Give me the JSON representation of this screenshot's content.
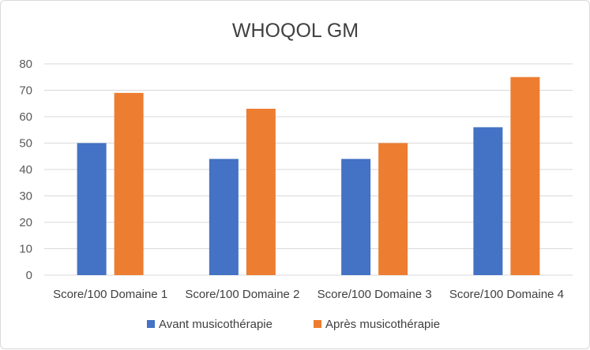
{
  "chart_data": {
    "type": "bar",
    "title": "WHOQOL GM",
    "categories": [
      "Score/100 Domaine 1",
      "Score/100 Domaine 2",
      "Score/100 Domaine 3",
      "Score/100 Domaine 4"
    ],
    "series": [
      {
        "name": "Avant musicothérapie",
        "color": "#4472c4",
        "values": [
          50,
          44,
          44,
          56
        ]
      },
      {
        "name": "Après musicothérapie",
        "color": "#ed7d31",
        "values": [
          69,
          63,
          50,
          75
        ]
      }
    ],
    "ylim": [
      0,
      80
    ],
    "yticks": [
      0,
      10,
      20,
      30,
      40,
      50,
      60,
      70,
      80
    ],
    "grid": true,
    "legend": "bottom",
    "xlabel": "",
    "ylabel": ""
  }
}
